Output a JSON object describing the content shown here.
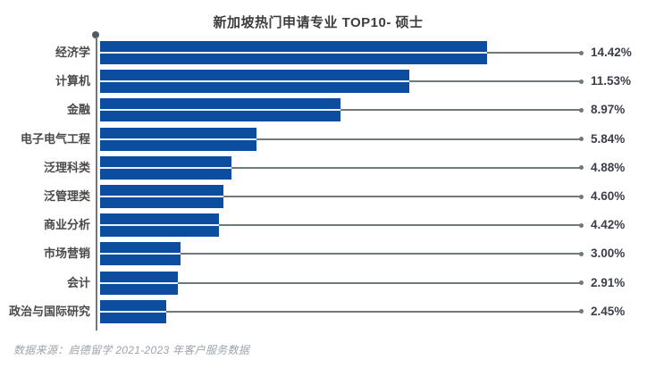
{
  "title": "新加坡热门申请专业 TOP10- 硕士",
  "source_note": "数据来源：启德留学 2021-2023 年客户服务数据",
  "colors": {
    "bar": "#0c4da0",
    "leader_line": "#70777d",
    "axis": "#70777d",
    "axis_dot": "#4f5a64",
    "title_text": "#3d3d3d",
    "category_text": "#4a4a4a",
    "value_text": "#3a3f4a",
    "source_text": "#9ca3ac",
    "background": "#ffffff"
  },
  "chart_data": {
    "type": "bar",
    "orientation": "horizontal",
    "title": "新加坡热门申请专业 TOP10- 硕士",
    "categories": [
      "经济学",
      "计算机",
      "金融",
      "电子电气工程",
      "泛理科类",
      "泛管理类",
      "商业分析",
      "市场营销",
      "会计",
      "政治与国际研究"
    ],
    "values": [
      14.42,
      11.53,
      8.97,
      5.84,
      4.88,
      4.6,
      4.42,
      3.0,
      2.91,
      2.45
    ],
    "value_labels": [
      "14.42%",
      "11.53%",
      "8.97%",
      "5.84%",
      "4.88%",
      "4.60%",
      "4.42%",
      "3.00%",
      "2.91%",
      "2.45%"
    ],
    "unit": "%",
    "xlim": [
      0,
      14.42
    ],
    "grid": false,
    "legend": false,
    "annotation_style": "leader-line-with-arrow-dot",
    "sort_order": "descending"
  }
}
